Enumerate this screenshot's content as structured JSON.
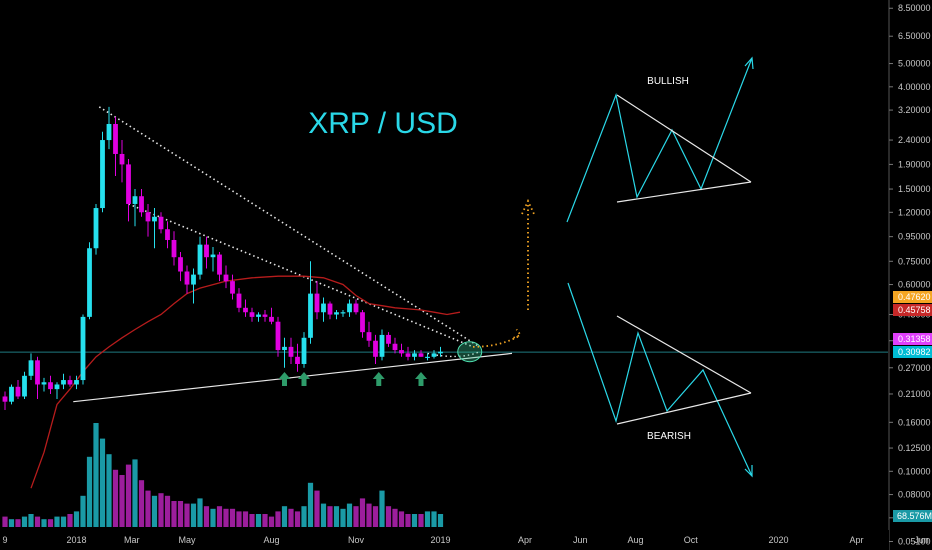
{
  "chart_data": {
    "type": "candlestick",
    "title": "XRP / USD",
    "price_axis": {
      "scale": "log",
      "ylim": [
        0.047,
        9.2
      ],
      "ticks": [
        "8.50000",
        "6.50000",
        "5.00000",
        "4.00000",
        "3.20000",
        "2.40000",
        "1.90000",
        "1.50000",
        "1.20000",
        "0.95000",
        "0.75000",
        "0.60000",
        "0.45000",
        "0.35000",
        "0.27000",
        "0.21000",
        "0.16000",
        "0.12500",
        "0.10000",
        "0.08000",
        "0.06400",
        "0.05100"
      ]
    },
    "time_axis": {
      "labels": [
        {
          "text": "9",
          "t": 0
        },
        {
          "text": "2018",
          "t": 11
        },
        {
          "text": "Mar",
          "t": 19.5
        },
        {
          "text": "May",
          "t": 28
        },
        {
          "text": "Aug",
          "t": 41
        },
        {
          "text": "Nov",
          "t": 54
        },
        {
          "text": "2019",
          "t": 67
        },
        {
          "text": "Apr",
          "t": 80
        },
        {
          "text": "Jun",
          "t": 88.5
        },
        {
          "text": "Aug",
          "t": 97
        },
        {
          "text": "Oct",
          "t": 105.5
        },
        {
          "text": "2020",
          "t": 119
        },
        {
          "text": "Apr",
          "t": 131
        },
        {
          "text": "Jun",
          "t": 141
        }
      ]
    },
    "candles": [
      [
        0.205,
        0.215,
        0.18,
        0.195
      ],
      [
        0.195,
        0.23,
        0.19,
        0.225
      ],
      [
        0.225,
        0.24,
        0.2,
        0.205
      ],
      [
        0.205,
        0.26,
        0.2,
        0.25
      ],
      [
        0.25,
        0.31,
        0.24,
        0.29
      ],
      [
        0.29,
        0.3,
        0.2,
        0.23
      ],
      [
        0.23,
        0.245,
        0.215,
        0.235
      ],
      [
        0.235,
        0.25,
        0.21,
        0.22
      ],
      [
        0.22,
        0.235,
        0.2,
        0.23
      ],
      [
        0.23,
        0.255,
        0.22,
        0.24
      ],
      [
        0.24,
        0.25,
        0.225,
        0.23
      ],
      [
        0.23,
        0.25,
        0.22,
        0.24
      ],
      [
        0.24,
        0.45,
        0.23,
        0.44
      ],
      [
        0.44,
        0.9,
        0.43,
        0.85
      ],
      [
        0.85,
        1.3,
        0.8,
        1.25
      ],
      [
        1.25,
        2.6,
        1.2,
        2.4
      ],
      [
        2.4,
        3.3,
        2.2,
        2.8
      ],
      [
        2.8,
        3.0,
        1.7,
        2.1
      ],
      [
        2.1,
        2.4,
        1.6,
        1.9
      ],
      [
        1.9,
        2.0,
        1.1,
        1.3
      ],
      [
        1.3,
        1.5,
        1.05,
        1.4
      ],
      [
        1.4,
        1.5,
        1.15,
        1.2
      ],
      [
        1.2,
        1.3,
        0.95,
        1.1
      ],
      [
        1.1,
        1.25,
        0.85,
        1.15
      ],
      [
        1.15,
        1.2,
        0.98,
        1.02
      ],
      [
        1.02,
        1.1,
        0.85,
        0.92
      ],
      [
        0.92,
        1.0,
        0.72,
        0.78
      ],
      [
        0.78,
        0.82,
        0.62,
        0.68
      ],
      [
        0.68,
        0.72,
        0.55,
        0.6
      ],
      [
        0.6,
        0.7,
        0.5,
        0.66
      ],
      [
        0.66,
        0.95,
        0.63,
        0.88
      ],
      [
        0.88,
        0.95,
        0.7,
        0.78
      ],
      [
        0.78,
        0.86,
        0.68,
        0.8
      ],
      [
        0.8,
        0.82,
        0.62,
        0.66
      ],
      [
        0.66,
        0.72,
        0.58,
        0.62
      ],
      [
        0.62,
        0.66,
        0.52,
        0.55
      ],
      [
        0.55,
        0.58,
        0.46,
        0.48
      ],
      [
        0.48,
        0.52,
        0.44,
        0.46
      ],
      [
        0.46,
        0.48,
        0.42,
        0.44
      ],
      [
        0.44,
        0.46,
        0.42,
        0.45
      ],
      [
        0.45,
        0.47,
        0.42,
        0.44
      ],
      [
        0.44,
        0.48,
        0.41,
        0.42
      ],
      [
        0.42,
        0.44,
        0.3,
        0.32
      ],
      [
        0.32,
        0.36,
        0.27,
        0.33
      ],
      [
        0.33,
        0.36,
        0.28,
        0.3
      ],
      [
        0.3,
        0.34,
        0.26,
        0.28
      ],
      [
        0.28,
        0.38,
        0.27,
        0.36
      ],
      [
        0.36,
        0.75,
        0.34,
        0.55
      ],
      [
        0.55,
        0.62,
        0.43,
        0.46
      ],
      [
        0.46,
        0.53,
        0.42,
        0.5
      ],
      [
        0.5,
        0.51,
        0.43,
        0.45
      ],
      [
        0.45,
        0.47,
        0.43,
        0.46
      ],
      [
        0.46,
        0.47,
        0.44,
        0.46
      ],
      [
        0.46,
        0.52,
        0.44,
        0.5
      ],
      [
        0.5,
        0.52,
        0.45,
        0.46
      ],
      [
        0.46,
        0.47,
        0.36,
        0.38
      ],
      [
        0.38,
        0.42,
        0.33,
        0.35
      ],
      [
        0.35,
        0.37,
        0.28,
        0.3
      ],
      [
        0.3,
        0.39,
        0.29,
        0.37
      ],
      [
        0.37,
        0.38,
        0.33,
        0.34
      ],
      [
        0.34,
        0.36,
        0.31,
        0.32
      ],
      [
        0.32,
        0.34,
        0.3,
        0.31
      ],
      [
        0.31,
        0.33,
        0.29,
        0.3
      ],
      [
        0.3,
        0.32,
        0.29,
        0.31
      ],
      [
        0.31,
        0.32,
        0.3,
        0.3
      ],
      [
        0.3,
        0.31,
        0.29,
        0.3
      ],
      [
        0.3,
        0.32,
        0.295,
        0.31
      ],
      [
        0.31,
        0.33,
        0.3,
        0.315
      ]
    ],
    "ma_red": [
      [
        4,
        0.085
      ],
      [
        6,
        0.12
      ],
      [
        8,
        0.19
      ],
      [
        10,
        0.22
      ],
      [
        12,
        0.26
      ],
      [
        14,
        0.3
      ],
      [
        16,
        0.33
      ],
      [
        18,
        0.36
      ],
      [
        20,
        0.39
      ],
      [
        22,
        0.42
      ],
      [
        24,
        0.45
      ],
      [
        26,
        0.5
      ],
      [
        28,
        0.55
      ],
      [
        30,
        0.58
      ],
      [
        34,
        0.62
      ],
      [
        38,
        0.64
      ],
      [
        42,
        0.65
      ],
      [
        46,
        0.65
      ],
      [
        49,
        0.64
      ],
      [
        52,
        0.6
      ],
      [
        54,
        0.54
      ],
      [
        56,
        0.5
      ],
      [
        58,
        0.49
      ],
      [
        60,
        0.48
      ],
      [
        62,
        0.475
      ],
      [
        64,
        0.47
      ],
      [
        66,
        0.46
      ],
      [
        68,
        0.45
      ],
      [
        70,
        0.46
      ]
    ],
    "volume": {
      "values": [
        4,
        3,
        3,
        4,
        5,
        4,
        3,
        3,
        4,
        4,
        5,
        6,
        12,
        27,
        40,
        34,
        28,
        22,
        20,
        24,
        26,
        18,
        14,
        12,
        13,
        12,
        10,
        10,
        9,
        9,
        11,
        8,
        7,
        8,
        7,
        7,
        6,
        6,
        5,
        5,
        5,
        4,
        6,
        8,
        7,
        6,
        8,
        17,
        14,
        9,
        8,
        8,
        7,
        9,
        8,
        11,
        9,
        8,
        14,
        8,
        7,
        6,
        5,
        5,
        5,
        6,
        6,
        5
      ],
      "label": "68.576M"
    },
    "current_price_labels": [
      {
        "text": "0.47620",
        "value": 0.4762,
        "color": "#f5a623"
      },
      {
        "text": "0.45758",
        "value": 0.45758,
        "color": "#c62828"
      },
      {
        "text": "0.31358",
        "value": 0.31358,
        "color": "#e040fb"
      },
      {
        "text": "0.30982",
        "value": 0.30982,
        "color": "#00bcd4"
      }
    ],
    "annotations": {
      "bullish_label": "BULLISH",
      "bearish_label": "BEARISH",
      "arrows_at": [
        43,
        46,
        57.5,
        64
      ]
    }
  },
  "colors": {
    "bull": "#26e0ee",
    "bear": "#e000e0",
    "vol_bull": "#1a9aa6",
    "vol_bear": "#9c1e9c",
    "ma": "#b71c1c",
    "trend": "#ffffff",
    "pattern": "#2ad8e8",
    "arrow": "#2e9c6a",
    "orange": "#f5a623",
    "grid": "#0f3b40"
  }
}
